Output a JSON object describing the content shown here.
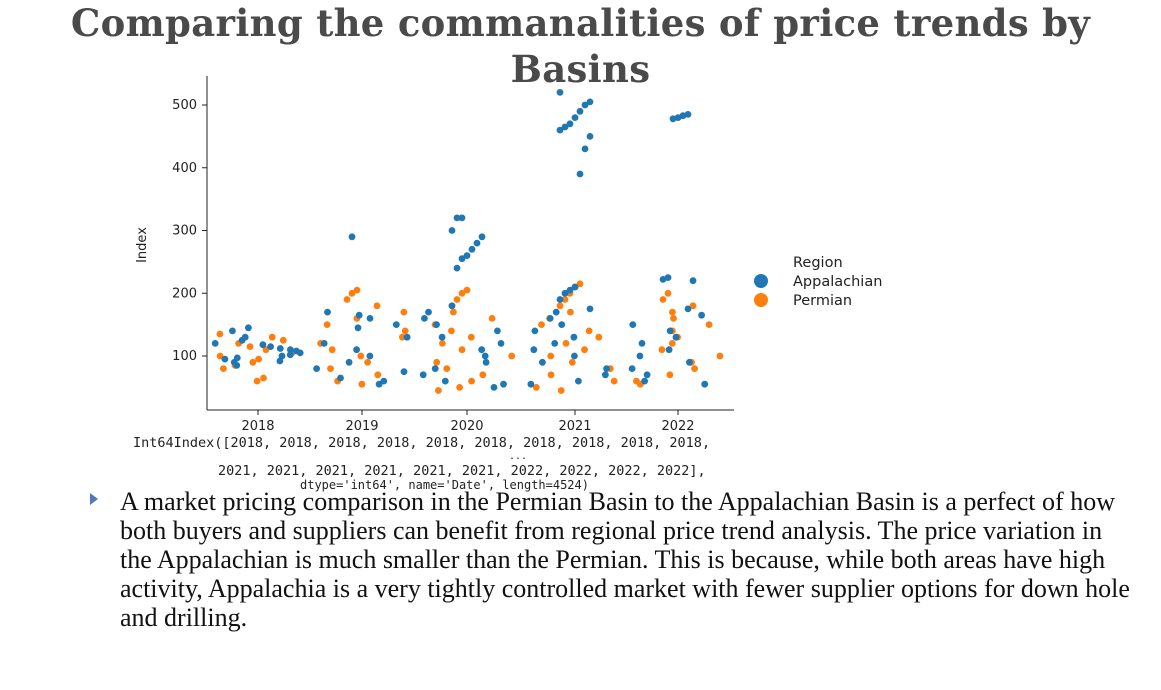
{
  "slide": {
    "title": "Comparing the commanalities of price trends by Basins",
    "bullet_text": "A market pricing comparison in the Permian Basin to the Appalachian Basin is a perfect of how both buyers and suppliers can benefit from regional price trend analysis. The price variation in the Appalachian is much smaller than the Permian. This is because, while both areas have high activity, Appalachia is a very tightly controlled market with fewer supplier options for down hole and drilling.",
    "bullet_icon": "triangle-bullet-icon"
  },
  "console_output": {
    "line1": "Int64Index([2018, 2018, 2018, 2018, 2018, 2018, 2018, 2018, 2018, 2018,",
    "line2": "...",
    "line3": "2021, 2021, 2021, 2021, 2021, 2021, 2022, 2022, 2022, 2022],",
    "line4": "dtype='int64', name='Date', length=4524)"
  },
  "chart_data": {
    "type": "scatter",
    "subtype": "swarm",
    "title": "",
    "xlabel": "",
    "ylabel": "Index",
    "categories": [
      "2018",
      "2019",
      "2020",
      "2021",
      "2022"
    ],
    "y_ticks": [
      100,
      200,
      300,
      400,
      500
    ],
    "ylim": [
      35,
      530
    ],
    "grid": false,
    "legend": {
      "title": "Region",
      "placement": "center-right",
      "entries": [
        "Appalachian",
        "Permian"
      ]
    },
    "series": [
      {
        "name": "Appalachian",
        "color": "#1f77b4",
        "values": {
          "2018": [
            85,
            90,
            92,
            95,
            97,
            100,
            102,
            105,
            108,
            110,
            112,
            115,
            118,
            120,
            125,
            130,
            140,
            145
          ],
          "2019": [
            55,
            60,
            65,
            75,
            80,
            90,
            100,
            110,
            120,
            130,
            145,
            150,
            160,
            165,
            170,
            290
          ],
          "2020": [
            50,
            55,
            60,
            70,
            80,
            90,
            100,
            110,
            120,
            130,
            140,
            150,
            160,
            170,
            180,
            240,
            255,
            260,
            270,
            280,
            290,
            300,
            320,
            320
          ],
          "2021": [
            55,
            60,
            70,
            80,
            90,
            100,
            110,
            120,
            130,
            140,
            150,
            160,
            170,
            175,
            190,
            200,
            205,
            210,
            390,
            430,
            450,
            460,
            465,
            470,
            480,
            490,
            500,
            505,
            520
          ],
          "2022": [
            55,
            60,
            70,
            80,
            90,
            100,
            110,
            120,
            130,
            140,
            150,
            165,
            175,
            220,
            222,
            225,
            478,
            480,
            483,
            485
          ]
        }
      },
      {
        "name": "Permian",
        "color": "#ff7f0e",
        "values": {
          "2018": [
            60,
            65,
            80,
            85,
            90,
            95,
            100,
            105,
            110,
            115,
            120,
            125,
            130,
            135
          ],
          "2019": [
            55,
            60,
            70,
            80,
            90,
            100,
            110,
            120,
            130,
            140,
            150,
            160,
            170,
            180,
            190,
            200,
            205
          ],
          "2020": [
            45,
            50,
            60,
            70,
            80,
            90,
            100,
            110,
            120,
            130,
            140,
            150,
            160,
            170,
            180,
            190,
            200,
            205
          ],
          "2021": [
            45,
            50,
            60,
            70,
            80,
            90,
            100,
            110,
            120,
            130,
            140,
            150,
            160,
            170,
            180,
            190,
            200,
            210,
            215
          ],
          "2022": [
            55,
            60,
            70,
            80,
            90,
            100,
            110,
            120,
            130,
            140,
            150,
            160,
            170,
            180,
            190,
            200
          ]
        }
      }
    ]
  }
}
